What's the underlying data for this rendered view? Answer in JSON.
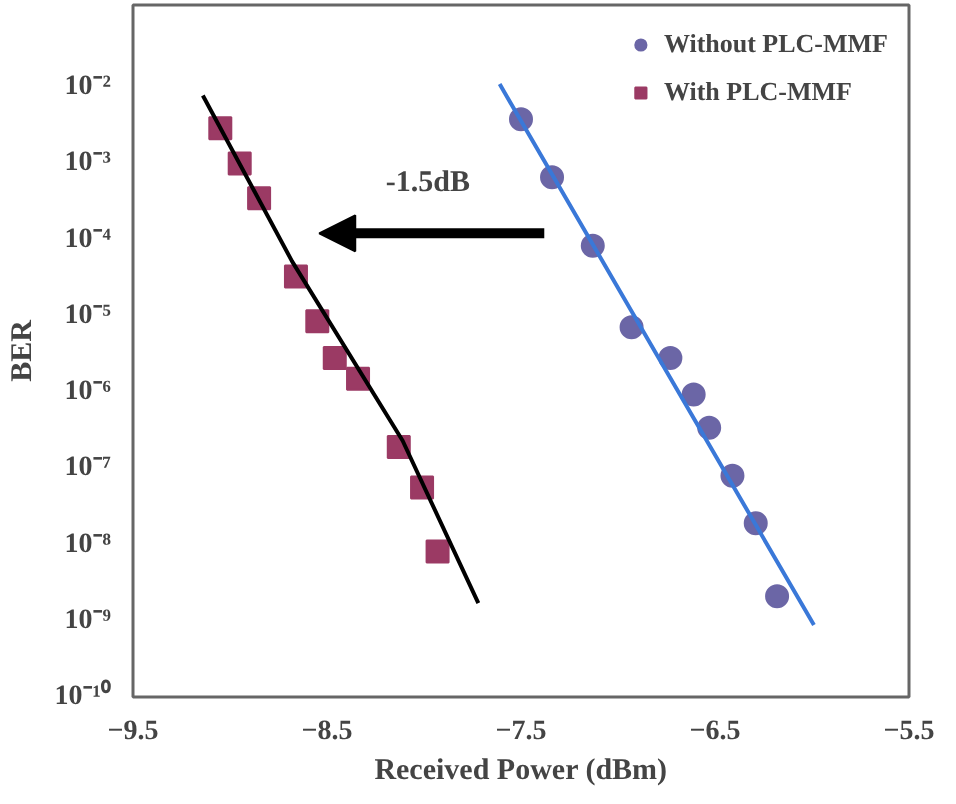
{
  "chart_data": {
    "type": "scatter",
    "xlabel": "Received Power (dBm)",
    "ylabel": "BER",
    "log": "y",
    "grid": false,
    "legend": "top right",
    "xlim": [
      -9.5,
      -5.5
    ],
    "xticks": [
      -9.5,
      -8.5,
      -7.5,
      -6.5,
      -5.5
    ],
    "ylim": [
      1e-10,
      0.12
    ],
    "yticks": [
      {
        "value": 1e-10,
        "label": "10⁻¹⁰"
      },
      {
        "value": 1e-09,
        "label": "10⁻⁹"
      },
      {
        "value": 1e-08,
        "label": "10⁻⁸"
      },
      {
        "value": 1e-07,
        "label": "10⁻⁷"
      },
      {
        "value": 1e-06,
        "label": "10⁻⁶"
      },
      {
        "value": 1e-05,
        "label": "10⁻⁵"
      },
      {
        "value": 0.0001,
        "label": "10⁻⁴"
      },
      {
        "value": 0.001,
        "label": "10⁻³"
      },
      {
        "value": 0.01,
        "label": "10⁻²"
      }
    ],
    "annotations": [
      "-1.5dB"
    ],
    "series": [
      {
        "name": "Without PLC-MMF",
        "marker": "circle",
        "color": "#6b66a6",
        "x": [
          -7.5,
          -7.34,
          -7.13,
          -6.93,
          -6.73,
          -6.61,
          -6.53,
          -6.41,
          -6.29,
          -6.18
        ],
        "values": [
          0.0038,
          0.00066,
          8.3e-05,
          7.1e-06,
          2.8e-06,
          9.3e-07,
          3.4e-07,
          8e-08,
          1.9e-08,
          2.1e-09
        ]
      },
      {
        "name": "With PLC-MMF",
        "marker": "square",
        "color": "#9b3a64",
        "x": [
          -9.05,
          -8.95,
          -8.85,
          -8.66,
          -8.55,
          -8.46,
          -8.34,
          -8.13,
          -8.01,
          -7.93
        ],
        "values": [
          0.0029,
          0.001,
          0.00035,
          3.3e-05,
          8.5e-06,
          2.8e-06,
          1.5e-06,
          1.9e-07,
          5.6e-08,
          8.1e-09
        ]
      },
      {
        "type": "line",
        "color": "#3a78d8",
        "line_style": "solid",
        "marker": "none",
        "x": [
          -7.61,
          -6.8,
          -5.99
        ],
        "values": [
          0.011,
          3.1e-06,
          8.8e-10
        ]
      },
      {
        "type": "line",
        "color": "#000000",
        "line_style": "solid",
        "marker": "none",
        "x": [
          -9.14,
          -8.68,
          -8.11,
          -7.72
        ],
        "values": [
          0.0078,
          5.2e-05,
          2.3e-07,
          1.7e-09
        ]
      }
    ]
  }
}
